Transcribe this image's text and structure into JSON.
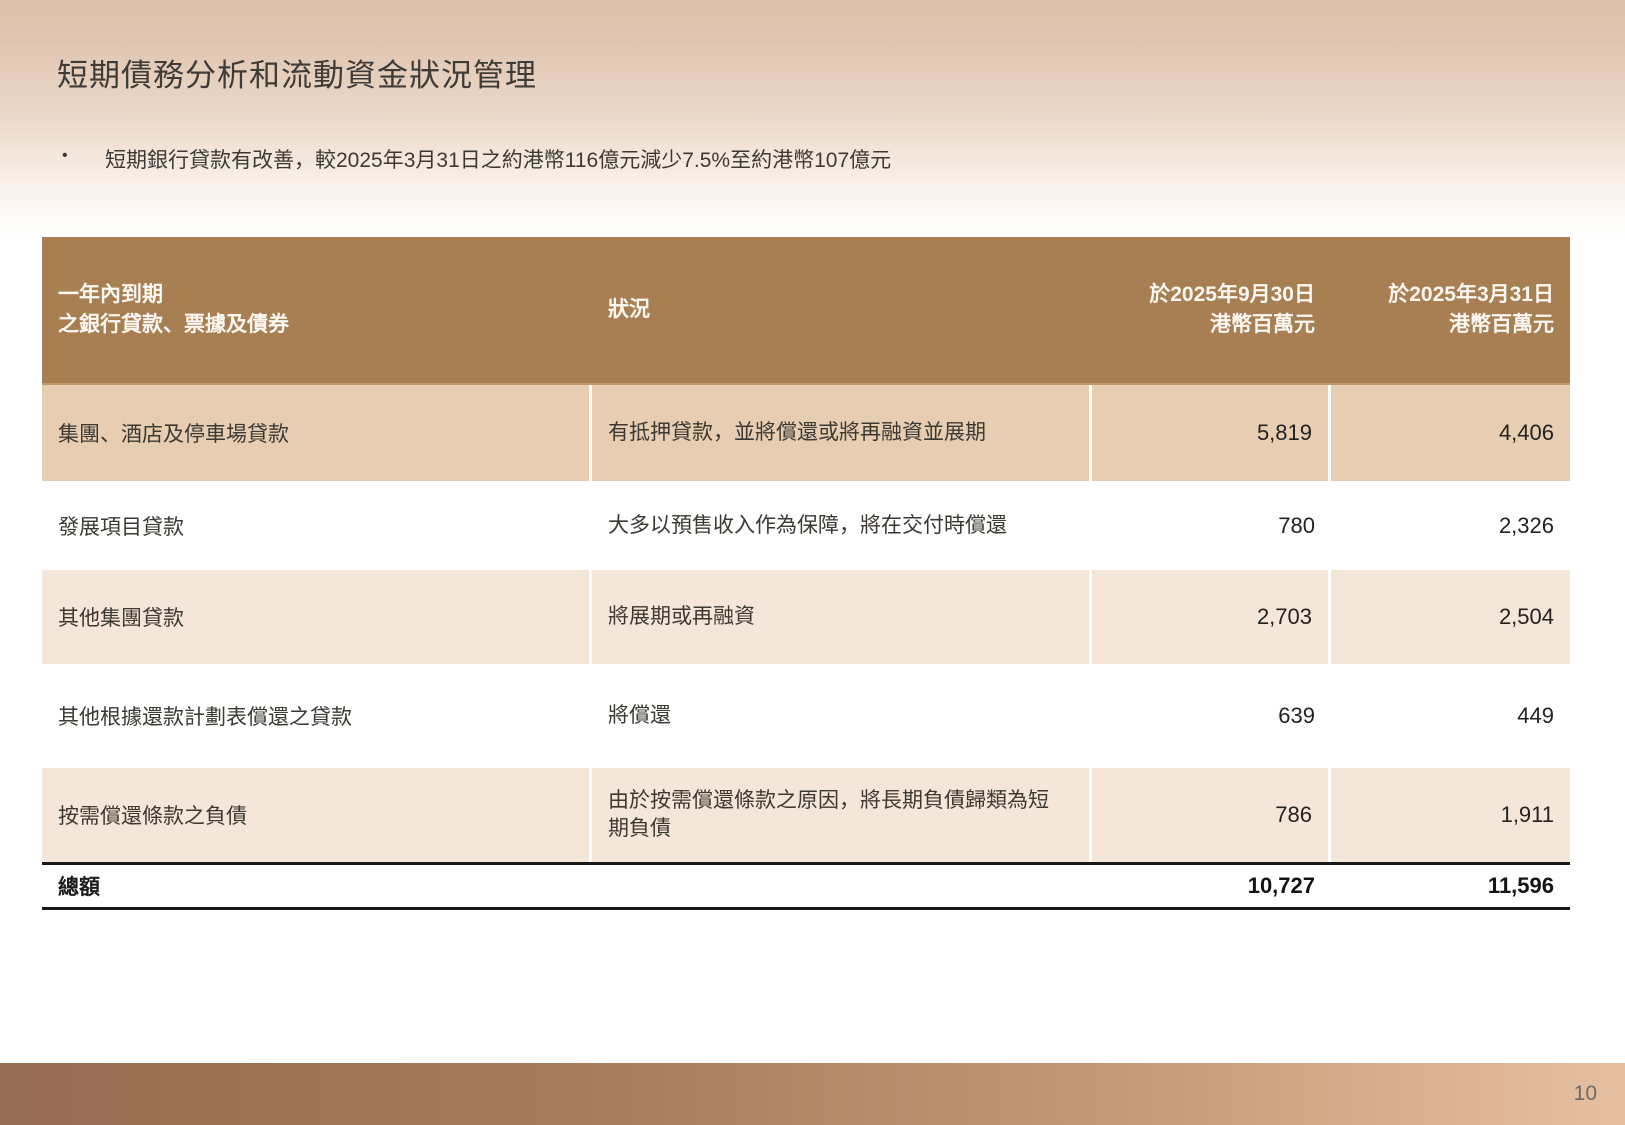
{
  "slide": {
    "title": "短期債務分析和流動資金狀況管理",
    "bullet_glyph": "•",
    "bullet": "短期銀行貸款有改善，較2025年3月31日之約港幣116億元減少7.5%至約港幣107億元",
    "page_number": "10"
  },
  "table": {
    "header": {
      "col1": [
        "一年內到期",
        "之銀行貸款、票據及債券"
      ],
      "col2": "狀況",
      "col3": [
        "於2025年9月30日",
        "港幣百萬元"
      ],
      "col4": [
        "於2025年3月31日",
        "港幣百萬元"
      ]
    },
    "rows": [
      {
        "item": "集團、酒店及停車場貸款",
        "status": "有抵押貸款，並將償還或將再融資並展期",
        "sep2025": "5,819",
        "mar2025": "4,406"
      },
      {
        "item": "發展項目貸款",
        "status": "大多以預售收入作為保障，將在交付時償還",
        "sep2025": "780",
        "mar2025": "2,326"
      },
      {
        "item": "其他集團貸款",
        "status": "將展期或再融資",
        "sep2025": "2,703",
        "mar2025": "2,504"
      },
      {
        "item": "其他根據還款計劃表償還之貸款",
        "status": "將償還",
        "sep2025": "639",
        "mar2025": "449"
      },
      {
        "item": "按需償還條款之負債",
        "status": "由於按需償還條款之原因，將長期負債歸類為短期負債",
        "sep2025": "786",
        "mar2025": "1,911"
      }
    ],
    "total": {
      "label": "總額",
      "sep2025": "10,727",
      "mar2025": "11,596"
    }
  },
  "colors": {
    "header_bg": "#a87e53",
    "header_text": "#fdf8f1",
    "row_band_dark": "#e7cdb2",
    "row_band_light": "#f4e7d9",
    "divider_white": "#ffffff",
    "total_border": "#191919",
    "title_text": "#3f3b36",
    "body_text": "#3c3933",
    "top_gradient_start": "#dcc0ab",
    "top_gradient_end": "#ffffff",
    "bottom_bar_left": "#966d52",
    "bottom_bar_right": "#e7c0a1",
    "page_number_text": "#6f6a66"
  }
}
